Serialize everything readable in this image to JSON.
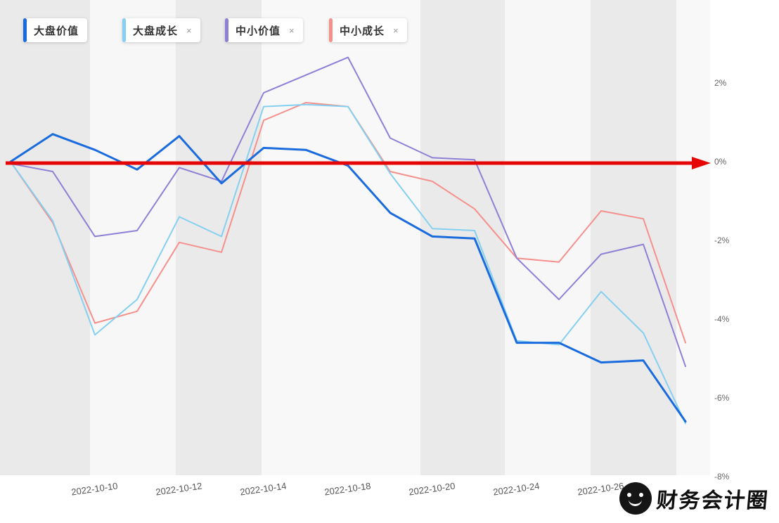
{
  "legend": {
    "items": [
      {
        "label": "大盘价值",
        "color": "#1a6bdd",
        "closable": false,
        "close_label": ""
      },
      {
        "label": "大盘成长",
        "color": "#85d0f0",
        "closable": true,
        "close_label": "×"
      },
      {
        "label": "中小价值",
        "color": "#8f7fd6",
        "closable": true,
        "close_label": "×"
      },
      {
        "label": "中小成长",
        "color": "#f5908c",
        "closable": true,
        "close_label": "×"
      }
    ]
  },
  "chart_data": {
    "type": "line",
    "title": "",
    "unit": "percent",
    "ylim": [
      -8.1,
      3.2
    ],
    "grid": "vertical-stripes",
    "legend_position": "top-left",
    "x_ticks": [
      {
        "i": 2,
        "label": "2022-10-10"
      },
      {
        "i": 4,
        "label": "2022-10-12"
      },
      {
        "i": 6,
        "label": "2022-10-14"
      },
      {
        "i": 8,
        "label": "2022-10-18"
      },
      {
        "i": 10,
        "label": "2022-10-20"
      },
      {
        "i": 12,
        "label": "2022-10-24"
      },
      {
        "i": 14,
        "label": "2022-10-26"
      }
    ],
    "y_ticks": [
      {
        "v": 2,
        "label": "2%"
      },
      {
        "v": 0,
        "label": "0%"
      },
      {
        "v": -2,
        "label": "-2%"
      },
      {
        "v": -4,
        "label": "-4%"
      },
      {
        "v": -6,
        "label": "-6%"
      },
      {
        "v": -8,
        "label": "-8%"
      }
    ],
    "series": [
      {
        "name": "中小成长",
        "color": "#f5908c",
        "width": 2,
        "values": [
          0,
          -1.55,
          -4.1,
          -3.8,
          -2.05,
          -2.3,
          1.05,
          1.5,
          1.4,
          -0.25,
          -0.5,
          -1.2,
          -2.45,
          -2.55,
          -1.25,
          -1.45,
          -4.6
        ]
      },
      {
        "name": "中小价值",
        "color": "#8f7fd6",
        "width": 2,
        "values": [
          -0.05,
          -0.25,
          -1.9,
          -1.75,
          -0.15,
          -0.5,
          1.75,
          2.2,
          2.65,
          0.6,
          0.1,
          0.05,
          -2.45,
          -3.5,
          -2.35,
          -2.1,
          -5.2
        ]
      },
      {
        "name": "大盘成长",
        "color": "#85d0f0",
        "width": 2,
        "values": [
          0,
          -1.5,
          -4.4,
          -3.5,
          -1.4,
          -1.9,
          1.4,
          1.45,
          1.4,
          -0.3,
          -1.7,
          -1.75,
          -4.55,
          -4.65,
          -3.3,
          -4.35,
          -6.65
        ]
      },
      {
        "name": "大盘价值",
        "color": "#1a6bdd",
        "width": 3,
        "values": [
          0,
          0.7,
          0.3,
          -0.2,
          0.65,
          -0.55,
          0.35,
          0.3,
          -0.1,
          -1.3,
          -1.9,
          -1.95,
          -4.6,
          -4.6,
          -5.1,
          -5.05,
          -6.6
        ]
      }
    ],
    "zero_marker": {
      "type": "arrow",
      "value": 0,
      "color": "#e60505"
    }
  },
  "watermark": {
    "text": "财务会计圈"
  }
}
